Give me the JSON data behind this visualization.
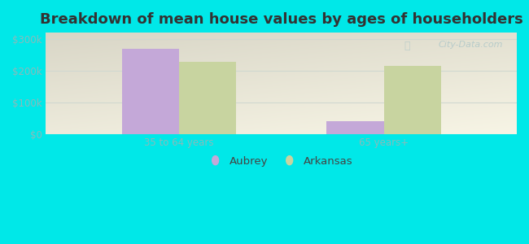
{
  "title": "Breakdown of mean house values by ages of householders",
  "categories": [
    "35 to 64 years",
    "65 years+"
  ],
  "aubrey_values": [
    268000,
    40000
  ],
  "arkansas_values": [
    228000,
    215000
  ],
  "aubrey_color": "#c4a8d8",
  "arkansas_color": "#c8d4a0",
  "background_outer": "#00e8e8",
  "background_inner_topleft": "#d8efd8",
  "background_inner_bottomright": "#f0f8f0",
  "yticks": [
    0,
    100000,
    200000,
    300000
  ],
  "ytick_labels": [
    "$0",
    "$100k",
    "$200k",
    "$300k"
  ],
  "ylim": [
    0,
    320000
  ],
  "bar_width": 0.28,
  "legend_labels": [
    "Aubrey",
    "Arkansas"
  ],
  "title_fontsize": 13,
  "tick_fontsize": 8.5,
  "legend_fontsize": 9.5,
  "tick_color": "#88bbbb",
  "grid_color": "#d0d8d0",
  "watermark_color": "#b0c8c8"
}
